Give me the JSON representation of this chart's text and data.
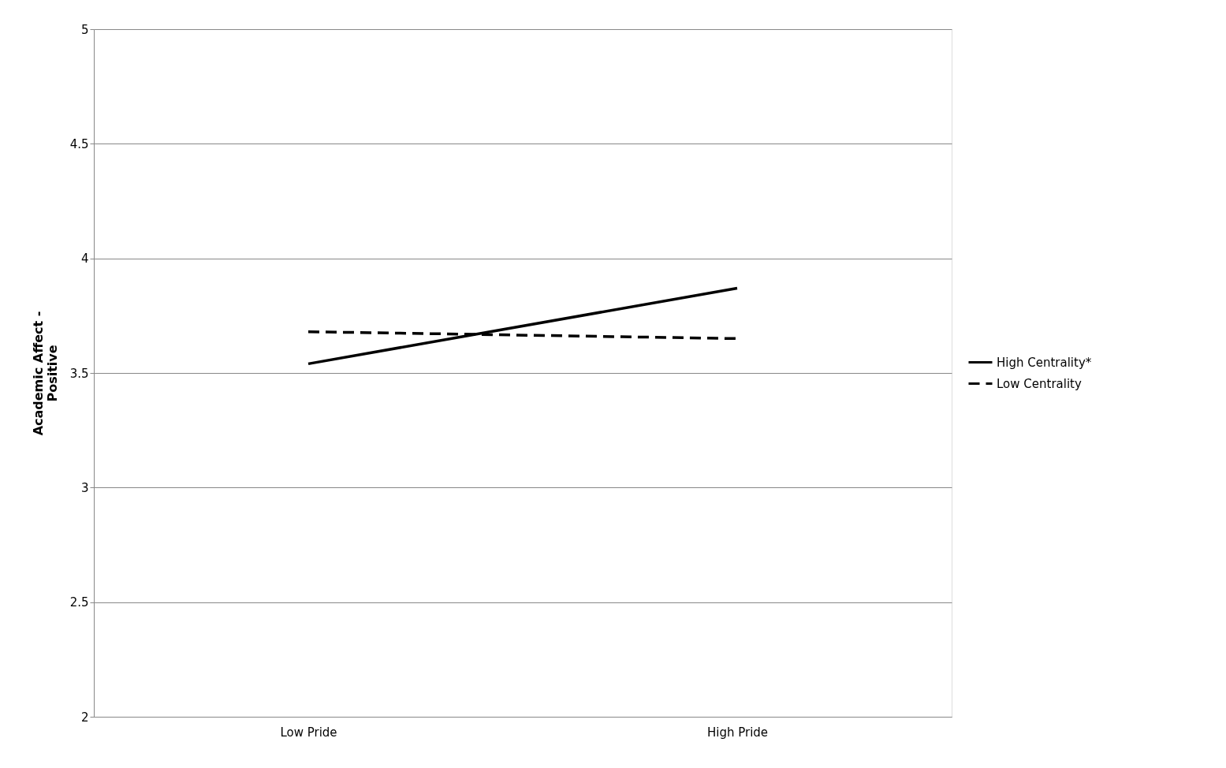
{
  "chart_data": {
    "type": "line",
    "ylabel": "Academic Affect - Positive",
    "categories": [
      "Low Pride",
      "High Pride"
    ],
    "series": [
      {
        "name": "High Centrality*",
        "color": "#000000",
        "line_style": "solid",
        "values": [
          3.54,
          3.87
        ]
      },
      {
        "name": "Low Centrality",
        "color": "#000000",
        "line_style": "dashed",
        "values": [
          3.68,
          3.65
        ]
      }
    ],
    "ylim": [
      2,
      5
    ],
    "yticks": [
      2,
      2.5,
      3,
      3.5,
      4,
      4.5,
      5
    ],
    "grid": "y",
    "legend": "right",
    "marker": "none"
  }
}
